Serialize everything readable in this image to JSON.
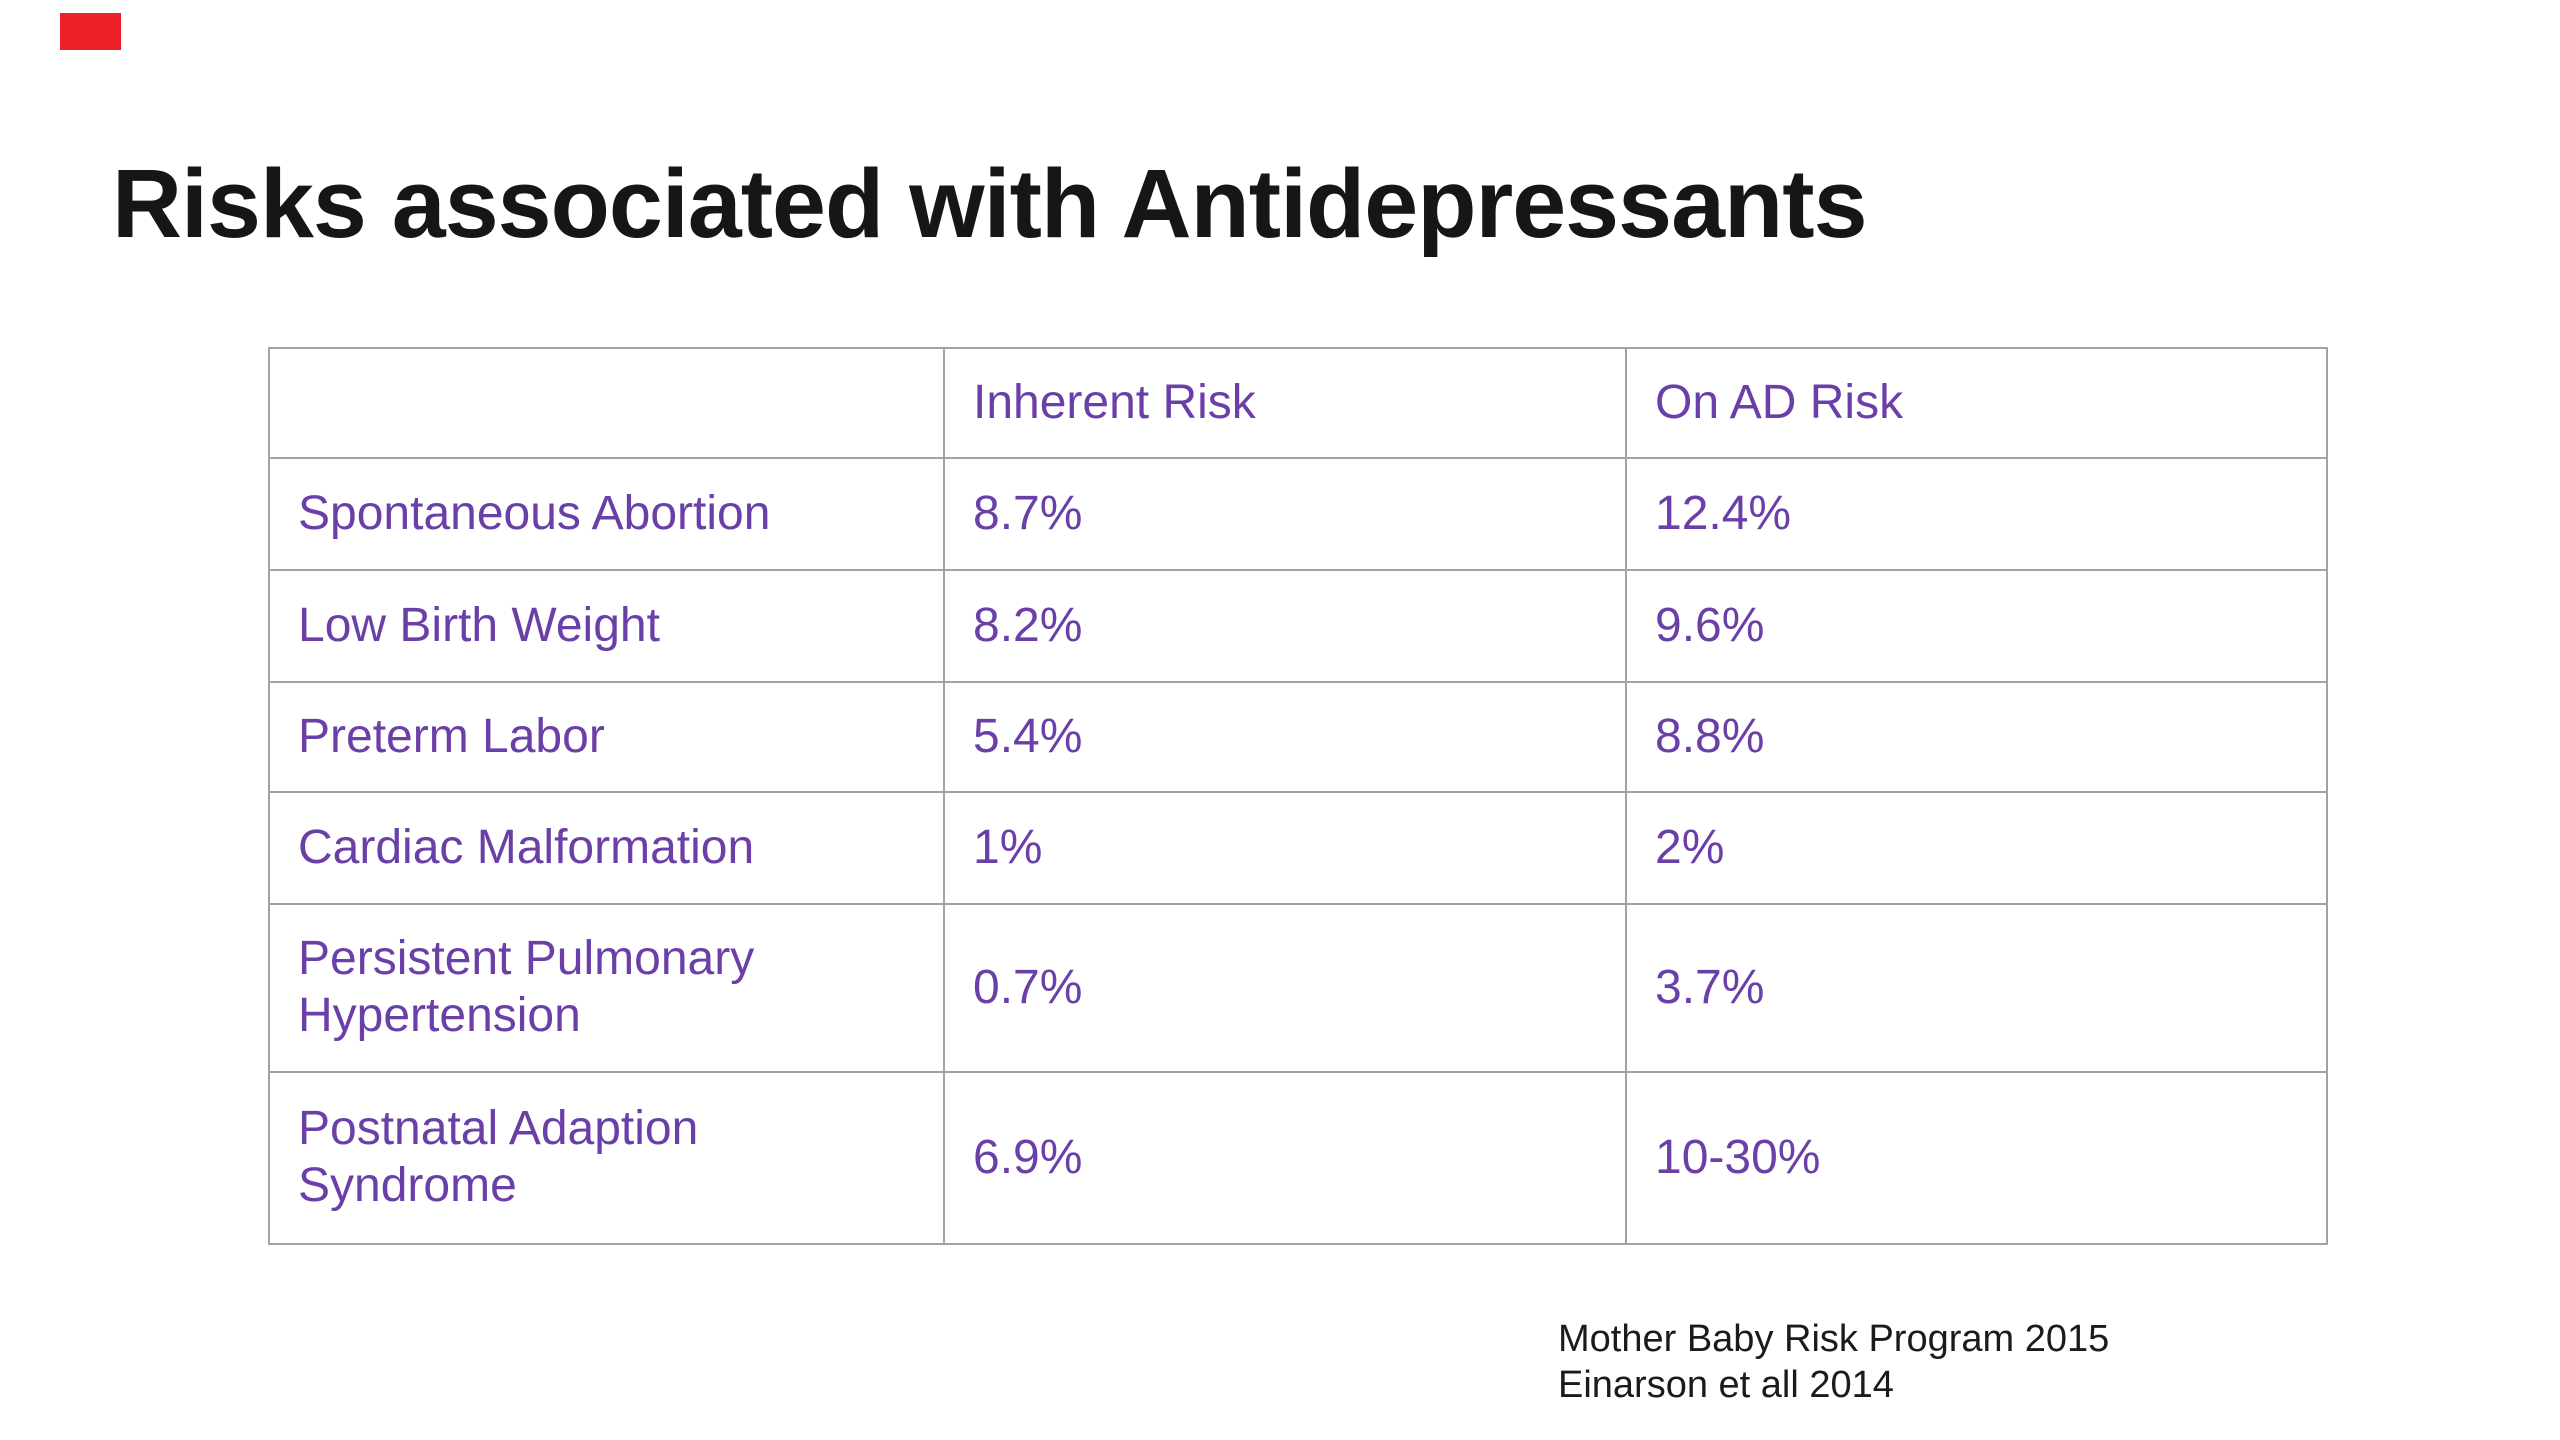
{
  "slide": {
    "title": "Risks associated with Antidepressants",
    "footer": {
      "lines": [
        "Mother Baby Risk Program 2015",
        "Einarson et all 2014"
      ]
    }
  },
  "table": {
    "header": [
      "",
      "Inherent Risk",
      "On AD Risk"
    ],
    "rows": [
      [
        "Spontaneous Abortion",
        "8.7%",
        "12.4%"
      ],
      [
        "Low Birth Weight",
        "8.2%",
        "9.6%"
      ],
      [
        "Preterm Labor",
        "5.4%",
        "8.8%"
      ],
      [
        "Cardiac Malformation",
        "1%",
        "2%"
      ],
      [
        "Persistent Pulmonary\nHypertension",
        "0.7%",
        "3.7%"
      ],
      [
        "Postnatal Adaption\nSyndrome",
        "6.9%",
        "10-30%"
      ]
    ]
  },
  "colors": {
    "table_text_purple": "#6A3FA8",
    "title_black": "#161616",
    "table_border_gray": "#A3A3A3",
    "background": "#FFFFFF",
    "corner_mark_red": "#EC2028"
  }
}
